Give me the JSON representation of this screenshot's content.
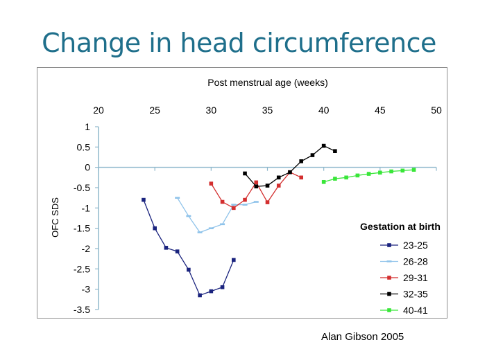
{
  "slide": {
    "title": "Change in head circumference",
    "credit": "Alan Gibson 2005"
  },
  "chart_data": {
    "type": "line",
    "title": "",
    "xlabel": "Post menstrual age (weeks)",
    "ylabel": "OFC SDS",
    "xlim": [
      20,
      50
    ],
    "ylim": [
      -3.5,
      1
    ],
    "x_ticks": [
      "20",
      "25",
      "30",
      "35",
      "40",
      "45",
      "50"
    ],
    "y_ticks": [
      "1",
      "0.5",
      "0",
      "-0.5",
      "-1",
      "-1.5",
      "-2",
      "-2.5",
      "-3",
      "-3.5"
    ],
    "x_axis_position": "top",
    "grid": false,
    "legend_title": "Gestation at birth",
    "legend_position": "right",
    "series": [
      {
        "name": "23-25",
        "color": "#1a237e",
        "marker": "square",
        "x": [
          24,
          25,
          26,
          27,
          28,
          29,
          30,
          31,
          32
        ],
        "y": [
          -0.8,
          -1.5,
          -1.98,
          -2.07,
          -2.52,
          -3.15,
          -3.05,
          -2.95,
          -2.28
        ]
      },
      {
        "name": "26-28",
        "color": "#8fc3ea",
        "marker": "dash",
        "x": [
          27,
          28,
          29,
          30,
          31,
          32,
          33,
          34
        ],
        "y": [
          -0.75,
          -1.2,
          -1.6,
          -1.5,
          -1.4,
          -0.92,
          -0.92,
          -0.85
        ]
      },
      {
        "name": "29-31",
        "color": "#d32f2f",
        "marker": "square",
        "x": [
          30,
          31,
          32,
          33,
          34,
          35,
          36,
          37,
          38
        ],
        "y": [
          -0.4,
          -0.85,
          -1.0,
          -0.8,
          -0.37,
          -0.86,
          -0.45,
          -0.12,
          -0.25
        ]
      },
      {
        "name": "32-35",
        "color": "#000000",
        "marker": "square",
        "x": [
          33,
          34,
          35,
          36,
          37,
          38,
          39,
          40,
          41
        ],
        "y": [
          -0.15,
          -0.47,
          -0.45,
          -0.25,
          -0.12,
          0.15,
          0.3,
          0.53,
          0.4
        ]
      },
      {
        "name": "40-41",
        "color": "#39e639",
        "marker": "square",
        "x": [
          40,
          41,
          42,
          43,
          44,
          45,
          46,
          47,
          48
        ],
        "y": [
          -0.36,
          -0.28,
          -0.25,
          -0.2,
          -0.16,
          -0.13,
          -0.1,
          -0.08,
          -0.06
        ]
      }
    ]
  }
}
